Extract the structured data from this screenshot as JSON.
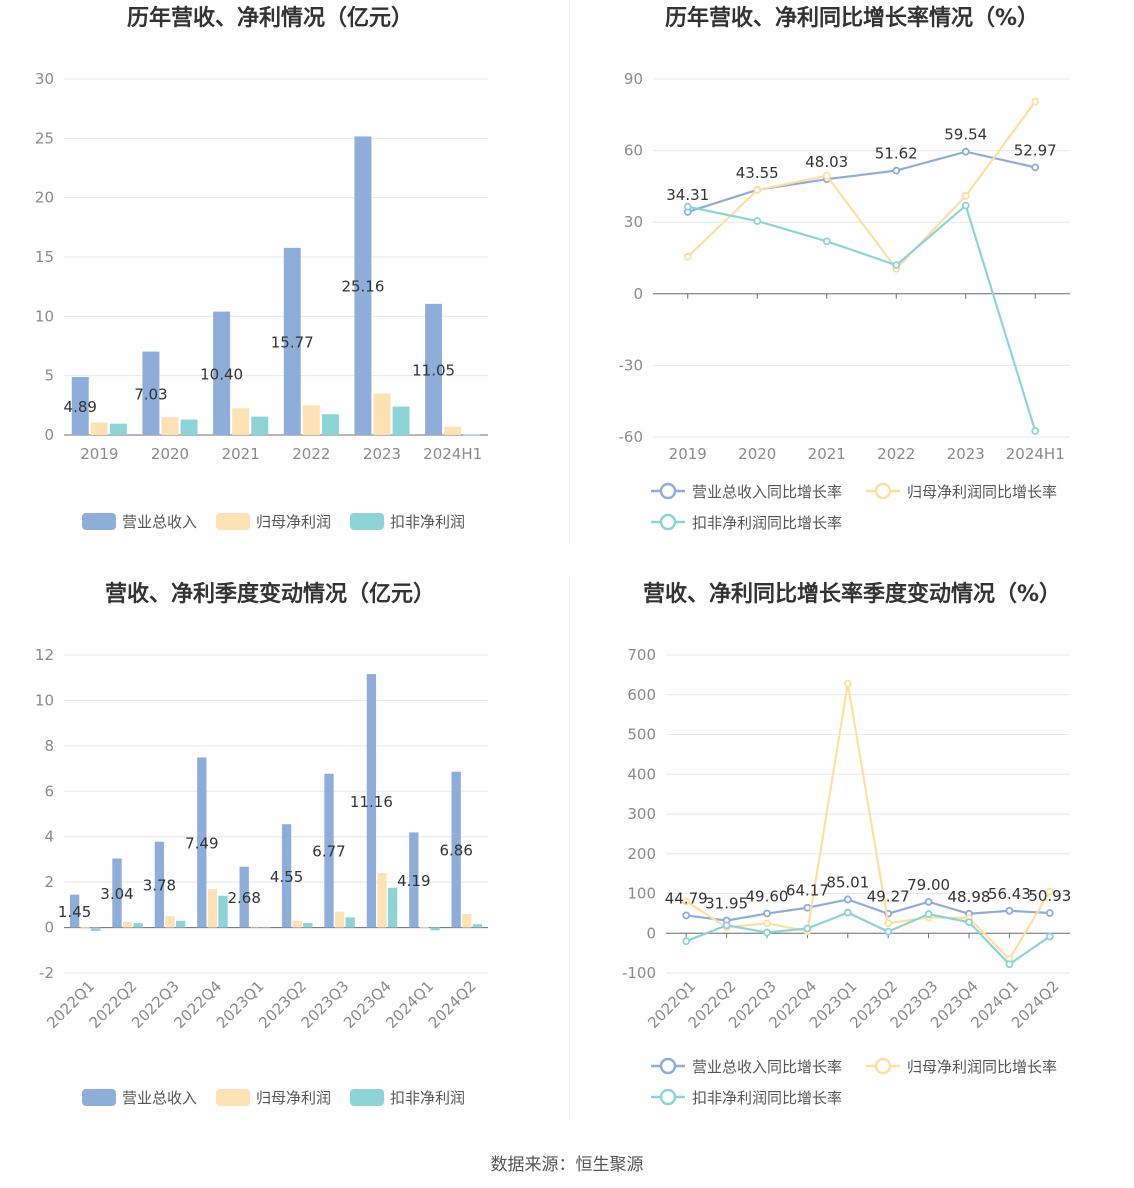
{
  "colors": {
    "revenue": "#8fadd9",
    "parent_profit": "#fde2b3",
    "deducted_profit": "#8dd4d6",
    "revenue_line": "#8fadd9",
    "parent_line": "#fde0a0",
    "deducted_line": "#8dd4d6"
  },
  "source_label": "数据来源：恒生聚源",
  "chart_data": [
    {
      "id": "annual_bar",
      "type": "bar",
      "title": "历年营收、净利情况（亿元）",
      "categories": [
        "2019",
        "2020",
        "2021",
        "2022",
        "2023",
        "2024H1"
      ],
      "ylim": [
        0,
        30
      ],
      "yticks": [
        0,
        5,
        10,
        15,
        20,
        25,
        30
      ],
      "grid": true,
      "legend": "bottom",
      "series": [
        {
          "name": "营业总收入",
          "values": [
            4.89,
            7.03,
            10.4,
            15.77,
            25.16,
            11.05
          ],
          "labels": [
            "4.89",
            "7.03",
            "10.40",
            "15.77",
            "25.16",
            "11.05"
          ]
        },
        {
          "name": "归母净利润",
          "values": [
            1.05,
            1.5,
            2.25,
            2.5,
            3.5,
            0.7
          ]
        },
        {
          "name": "扣非净利润",
          "values": [
            0.95,
            1.3,
            1.55,
            1.75,
            2.4,
            0.05
          ]
        }
      ]
    },
    {
      "id": "annual_line",
      "type": "line",
      "title": "历年营收、净利同比增长率情况（%）",
      "categories": [
        "2019",
        "2020",
        "2021",
        "2022",
        "2023",
        "2024H1"
      ],
      "ylim": [
        -60,
        90
      ],
      "yticks": [
        -60,
        -30,
        0,
        30,
        60,
        90
      ],
      "grid": true,
      "legend": "bottom",
      "series": [
        {
          "name": "营业总收入同比增长率",
          "values": [
            34.31,
            43.55,
            48.03,
            51.62,
            59.54,
            52.97
          ],
          "labels": [
            "34.31",
            "43.55",
            "48.03",
            "51.62",
            "59.54",
            "52.97"
          ]
        },
        {
          "name": "归母净利润同比增长率",
          "values": [
            15.5,
            43.5,
            49.5,
            10.5,
            41,
            80.5
          ]
        },
        {
          "name": "扣非净利润同比增长率",
          "values": [
            36.5,
            30.5,
            22,
            12,
            37,
            -57.5
          ]
        }
      ]
    },
    {
      "id": "quarter_bar",
      "type": "bar",
      "title": "营收、净利季度变动情况（亿元）",
      "categories": [
        "2022Q1",
        "2022Q2",
        "2022Q3",
        "2022Q4",
        "2023Q1",
        "2023Q2",
        "2023Q3",
        "2023Q4",
        "2024Q1",
        "2024Q2"
      ],
      "ylim": [
        -2,
        12
      ],
      "yticks": [
        -2,
        0,
        2,
        4,
        6,
        8,
        10,
        12
      ],
      "grid": true,
      "legend": "bottom",
      "series": [
        {
          "name": "营业总收入",
          "values": [
            1.45,
            3.04,
            3.78,
            7.49,
            2.68,
            4.55,
            6.77,
            11.16,
            4.19,
            6.86
          ],
          "labels": [
            "1.45",
            "3.04",
            "3.78",
            "7.49",
            "2.68",
            "4.55",
            "6.77",
            "11.16",
            "4.19",
            "6.86"
          ]
        },
        {
          "name": "归母净利润",
          "values": [
            0.02,
            0.25,
            0.5,
            1.7,
            0.04,
            0.3,
            0.7,
            2.4,
            0.02,
            0.6
          ]
        },
        {
          "name": "扣非净利润",
          "values": [
            -0.15,
            0.2,
            0.3,
            1.4,
            0.03,
            0.2,
            0.45,
            1.75,
            -0.12,
            0.15
          ]
        }
      ]
    },
    {
      "id": "quarter_line",
      "type": "line",
      "title": "营收、净利同比增长率季度变动情况（%）",
      "categories": [
        "2022Q1",
        "2022Q2",
        "2022Q3",
        "2022Q4",
        "2023Q1",
        "2023Q2",
        "2023Q3",
        "2023Q4",
        "2024Q1",
        "2024Q2"
      ],
      "ylim": [
        -100,
        700
      ],
      "yticks": [
        -100,
        0,
        100,
        200,
        300,
        400,
        500,
        600,
        700
      ],
      "grid": true,
      "legend": "bottom",
      "series": [
        {
          "name": "营业总收入同比增长率",
          "values": [
            44.79,
            31.95,
            49.6,
            64.17,
            85.01,
            49.27,
            79.0,
            48.98,
            56.43,
            50.93
          ],
          "labels": [
            "44.79",
            "31.95",
            "49.60",
            "64.17",
            "85.01",
            "49.27",
            "79.00",
            "48.98",
            "56.43",
            "50.93"
          ]
        },
        {
          "name": "归母净利润同比增长率",
          "values": [
            80,
            15,
            25,
            5,
            628,
            25,
            40,
            38,
            -65,
            105
          ]
        },
        {
          "name": "扣非净利润同比增长率",
          "values": [
            -20,
            20,
            2,
            12,
            52,
            4,
            48,
            28,
            -78,
            -8
          ]
        }
      ]
    }
  ]
}
